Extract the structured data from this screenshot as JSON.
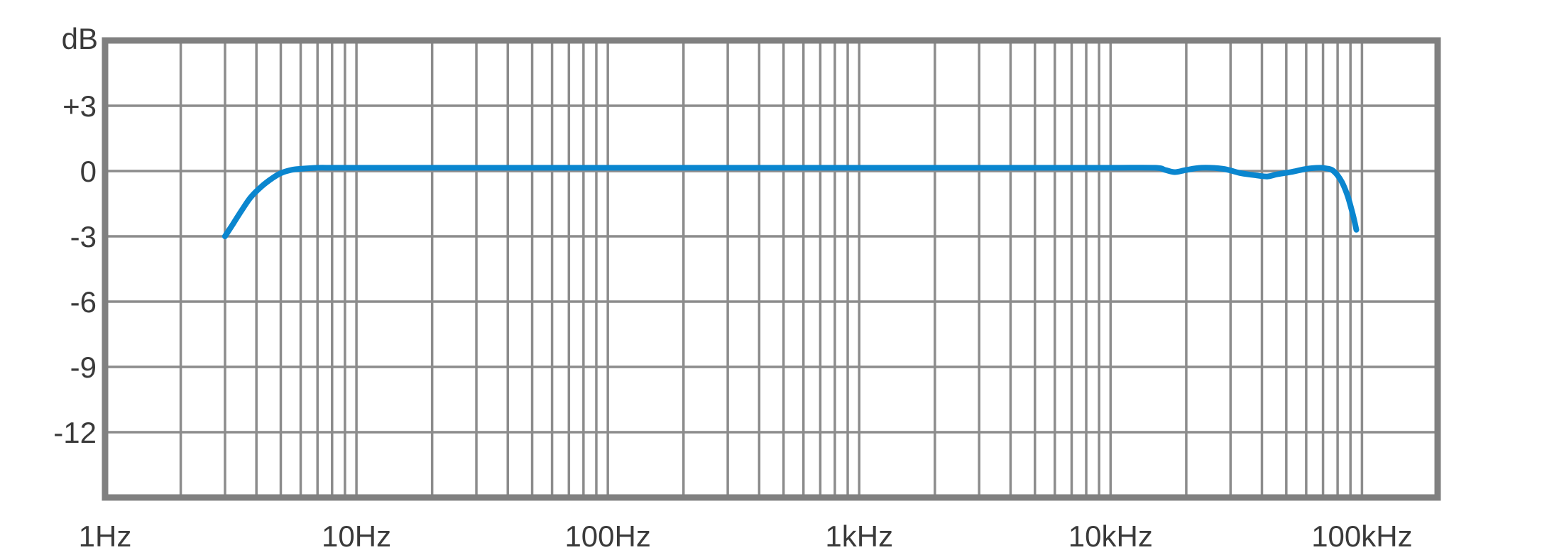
{
  "chart_data": {
    "type": "line",
    "title": "",
    "xlabel": "",
    "ylabel": "dB",
    "x_scale": "log",
    "xlim": [
      1,
      200000
    ],
    "ylim": [
      -15,
      6
    ],
    "grid": true,
    "legend": "none",
    "x_tick_values": [
      1,
      10,
      100,
      1000,
      10000,
      100000
    ],
    "x_tick_labels": [
      "1Hz",
      "10Hz",
      "100Hz",
      "1kHz",
      "10kHz",
      "100kHz"
    ],
    "y_tick_values": [
      3,
      0,
      -3,
      -6,
      -9,
      -12
    ],
    "y_tick_labels": [
      "+3",
      "0",
      "-3",
      "-6",
      "-9",
      "-12"
    ],
    "colors": {
      "series": "#0a86cf",
      "grid": "#8c8c8c",
      "frame": "#808080",
      "text": "#3a3a3a"
    },
    "series": [
      {
        "x": [
          3,
          3.2,
          3.5,
          3.8,
          4.2,
          4.6,
          5,
          5.5,
          6,
          7,
          8,
          10,
          20,
          50,
          100,
          1000,
          5000,
          10000,
          15000,
          16500,
          18000,
          20000,
          23000,
          28000,
          33000,
          38000,
          42000,
          46000,
          52000,
          60000,
          68000,
          72000,
          76000,
          80000,
          84000,
          88000,
          92000,
          95000
        ],
        "y": [
          -3,
          -2.5,
          -1.8,
          -1.2,
          -0.7,
          -0.35,
          -0.1,
          0.05,
          0.1,
          0.15,
          0.15,
          0.15,
          0.15,
          0.15,
          0.15,
          0.15,
          0.15,
          0.15,
          0.15,
          0.05,
          -0.05,
          0.05,
          0.15,
          0.1,
          -0.1,
          -0.2,
          -0.25,
          -0.15,
          -0.05,
          0.1,
          0.15,
          0.12,
          0.05,
          -0.2,
          -0.6,
          -1.2,
          -2,
          -2.7
        ]
      }
    ]
  }
}
